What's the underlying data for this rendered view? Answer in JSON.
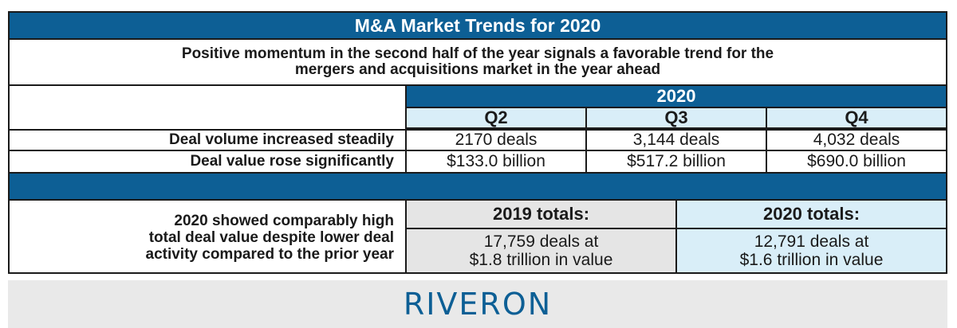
{
  "title": "M&A Market Trends for 2020",
  "subtitle": {
    "line1": "Positive momentum in the second half of the year signals a favorable trend for the",
    "line2": "mergers and acquisitions market in the year ahead"
  },
  "table": {
    "year": "2020",
    "quarters": [
      "Q2",
      "Q3",
      "Q4"
    ],
    "rows": [
      {
        "label": "Deal volume increased steadily",
        "values": [
          "2170 deals",
          "3,144 deals",
          "4,032 deals"
        ]
      },
      {
        "label": "Deal value rose significantly",
        "values": [
          "$133.0 billion",
          "$517.2 billion",
          "$690.0 billion"
        ]
      }
    ]
  },
  "totals": {
    "label_lines": [
      "2020 showed comparably high",
      "total deal value despite lower deal",
      "activity compared to the prior year"
    ],
    "y2019": {
      "heading": "2019 totals:",
      "line1": "17,759 deals at",
      "line2": "$1.8 trillion in value"
    },
    "y2020": {
      "heading": "2020 totals:",
      "line1": "12,791 deals at",
      "line2": "$1.6 trillion in value"
    }
  },
  "logo": "RIVERON",
  "colors": {
    "header_blue": "#0d5f95",
    "light_blue": "#d9eef8",
    "light_gray": "#e5e5e5"
  }
}
